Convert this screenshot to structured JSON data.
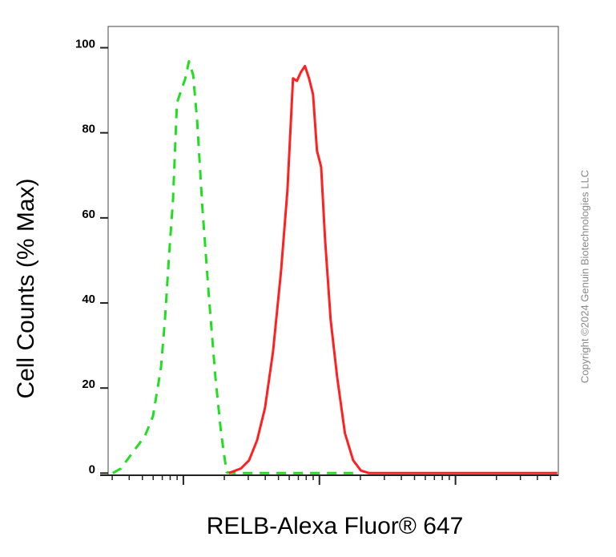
{
  "chart_data": {
    "type": "line",
    "xlabel": "RELB-Alexa Fluor® 647",
    "ylabel": "Cell Counts (% Max)",
    "annotation": "Copyright ©2024 Genuin Biotechnologies LLC",
    "xscale": "log",
    "xlim": [
      2.8,
      5700
    ],
    "xticks": [
      10,
      100,
      1000
    ],
    "xminor_ticks": [
      3,
      4,
      5,
      6,
      7,
      8,
      9,
      20,
      30,
      40,
      50,
      60,
      70,
      80,
      90,
      200,
      300,
      400,
      500,
      600,
      700,
      800,
      900,
      2000,
      3000,
      4000,
      5000
    ],
    "ylim": [
      -0.5,
      105
    ],
    "yticks": [
      0,
      20,
      40,
      60,
      80,
      100
    ],
    "series": [
      {
        "color": "#22dd22",
        "dash": true,
        "x": [
          3.03,
          3.48,
          4.25,
          5.22,
          5.98,
          6.84,
          7.32,
          7.84,
          8.39,
          8.97,
          9.6,
          10.3,
          11.0,
          11.8,
          12.6,
          13.8,
          15.4,
          17.2,
          18.9,
          20.8,
          23.2,
          177
        ],
        "values": [
          0,
          1.1,
          4.9,
          8.7,
          13.4,
          24.7,
          36,
          51,
          64.3,
          87,
          89.8,
          92.6,
          96.8,
          93.6,
          83.2,
          62.3,
          41.5,
          22.6,
          9.6,
          0.2,
          0,
          0
        ]
      },
      {
        "color": "#ff2020",
        "dash": false,
        "x": [
          21.6,
          26.5,
          30.4,
          34.8,
          39.8,
          45.6,
          52.2,
          58.2,
          64.0,
          68.4,
          73.2,
          78.3,
          83.9,
          89.8,
          96.0,
          103,
          110,
          121,
          135,
          154,
          177,
          202,
          232,
          5600
        ],
        "values": [
          0,
          1.1,
          3,
          7.7,
          15.3,
          28.5,
          47.4,
          66.4,
          92.8,
          92.2,
          94.3,
          95.7,
          92.8,
          89,
          75.8,
          72,
          55,
          36,
          22.6,
          9.4,
          3,
          0.6,
          0,
          0
        ]
      }
    ]
  }
}
